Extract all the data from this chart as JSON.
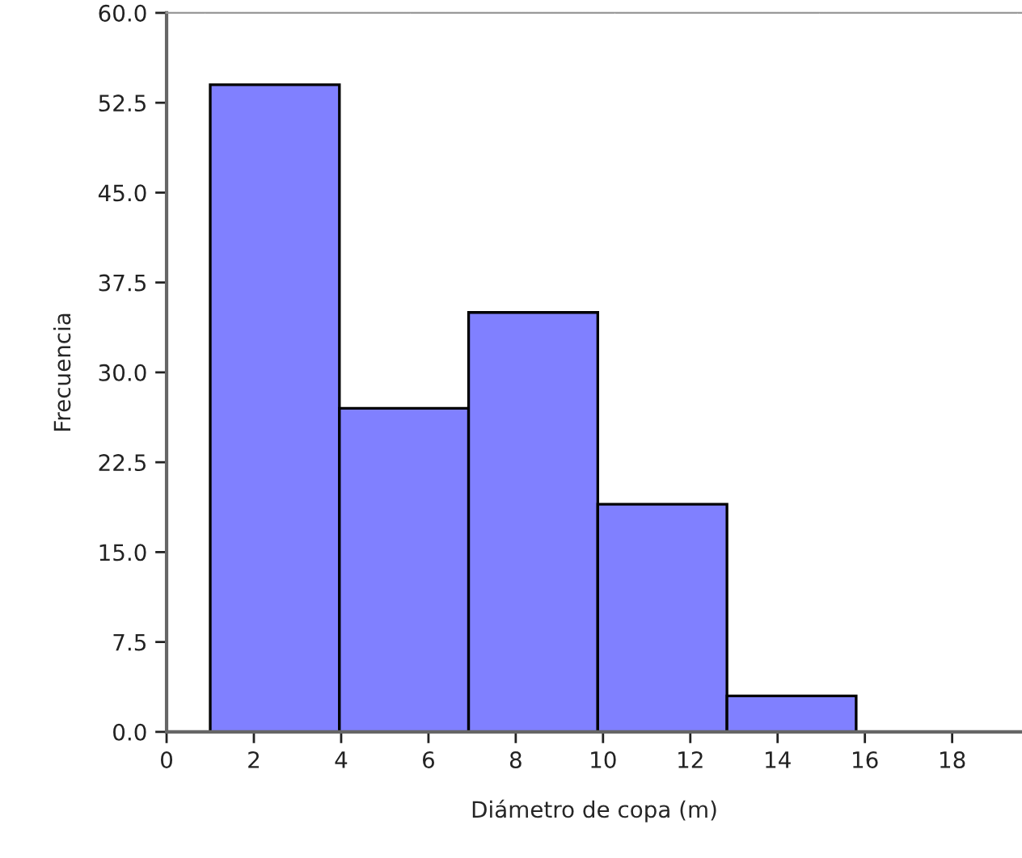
{
  "chart_data": {
    "type": "histogram",
    "xlabel": "Diámetro de copa (m)",
    "ylabel": "Frecuencia",
    "bins": [
      1,
      3.96,
      6.92,
      9.88,
      12.84,
      15.8
    ],
    "values": [
      54,
      27,
      35,
      19,
      3
    ],
    "color": "#8080ff",
    "xlim": [
      0,
      19.6
    ],
    "ylim": [
      0,
      60
    ],
    "xticks": [
      0,
      2,
      4,
      6,
      8,
      10,
      12,
      14,
      16,
      18
    ],
    "yticks": [
      {
        "value": 0,
        "label": "0.0"
      },
      {
        "value": 7.5,
        "label": "7.5"
      },
      {
        "value": 15,
        "label": "15.0"
      },
      {
        "value": 22.5,
        "label": "22.5"
      },
      {
        "value": 30,
        "label": "30.0"
      },
      {
        "value": 37.5,
        "label": "37.5"
      },
      {
        "value": 45,
        "label": "45.0"
      },
      {
        "value": 52.5,
        "label": "52.5"
      },
      {
        "value": 60,
        "label": "60.0"
      }
    ],
    "grid": false,
    "legend": false
  }
}
